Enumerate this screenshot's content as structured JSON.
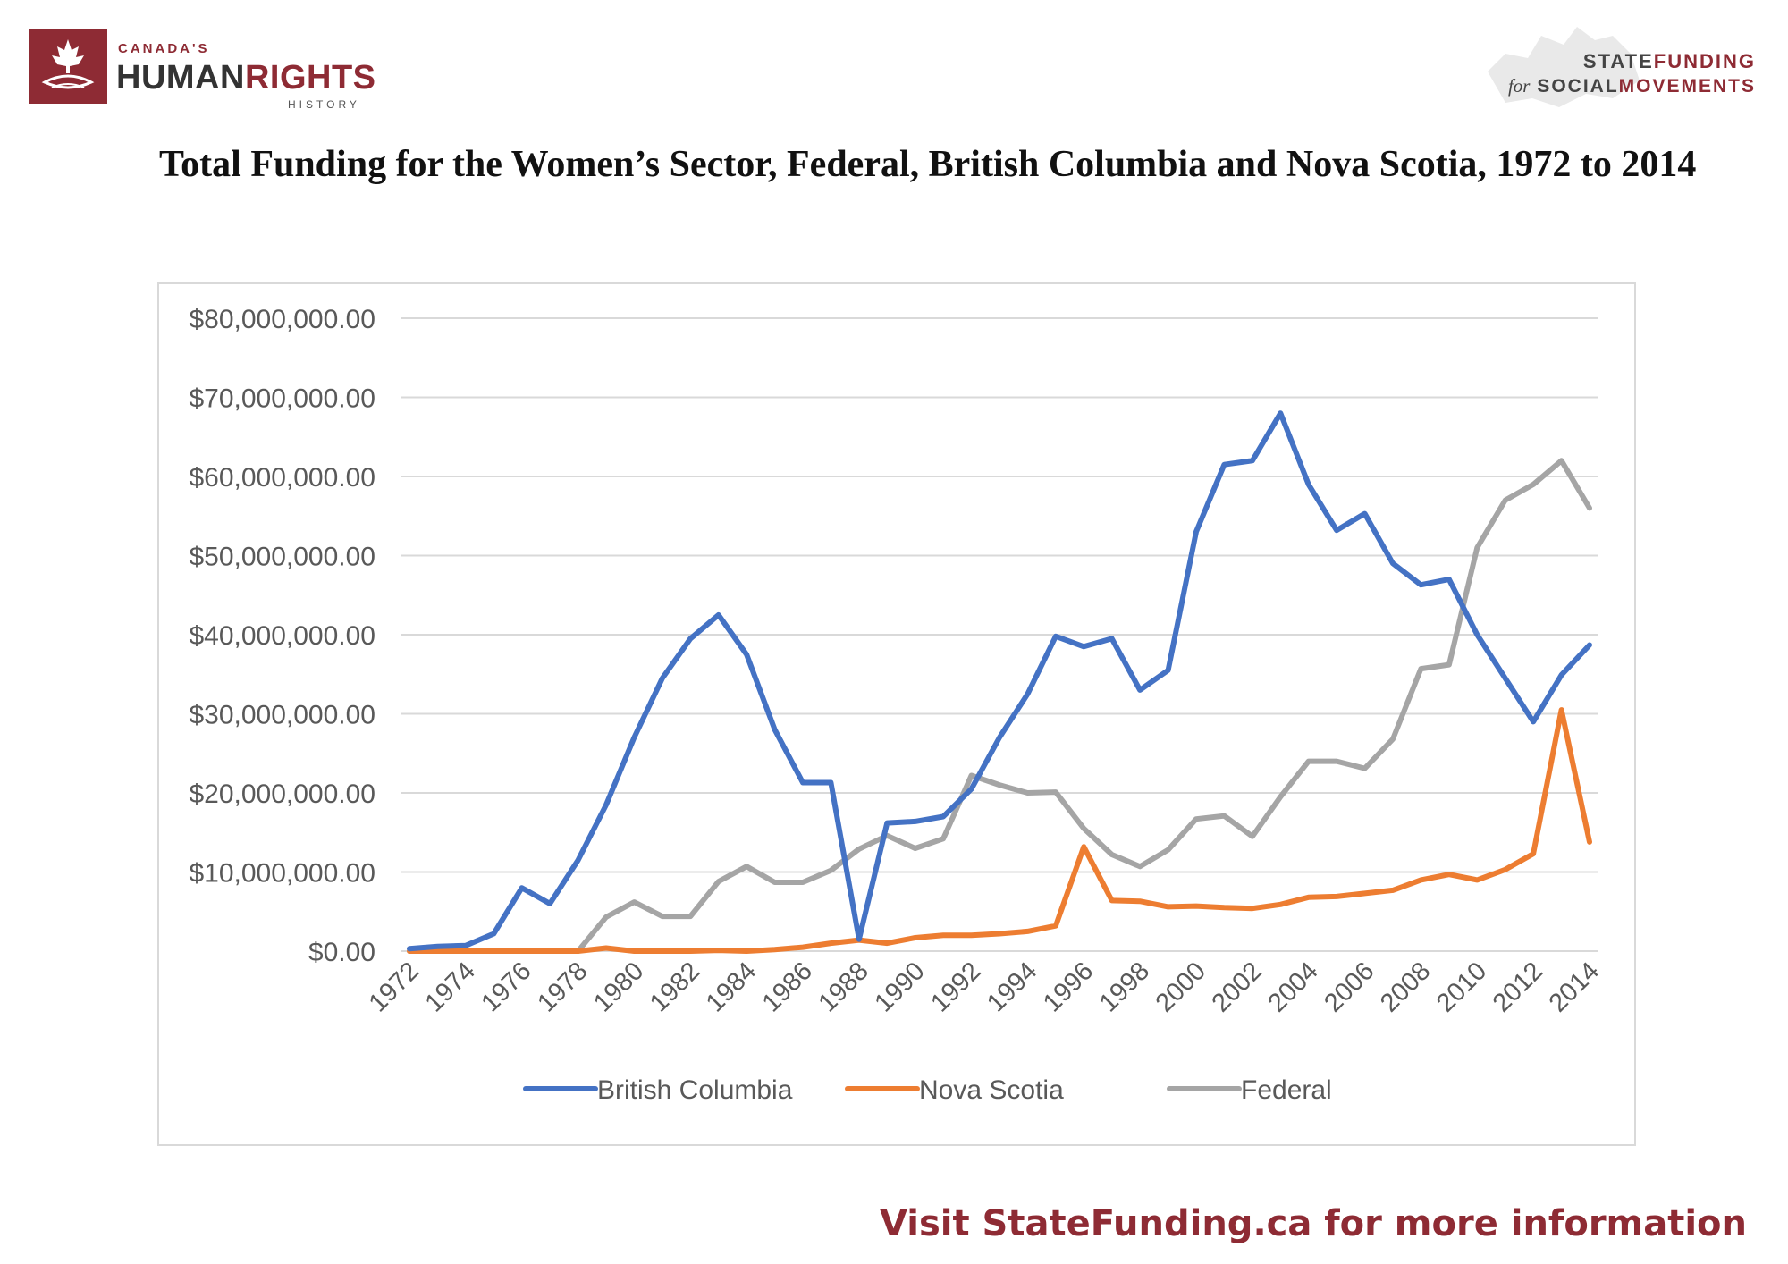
{
  "header": {
    "left_logo": {
      "line1": "CANADA'S",
      "line2a": "HUMAN",
      "line2b": "RIGHTS",
      "line3": "HISTORY",
      "icon": "maple-leaf-icon",
      "color": "#8e2b34"
    },
    "right_logo": {
      "line1a": "STATE",
      "line1b": "FUNDING",
      "line2a": "for",
      "line2b": "SOCIAL",
      "line2c": "MOVEMENTS",
      "icon": "canada-map-icon"
    }
  },
  "title": "Total Funding for the Women’s Sector, Federal, British Columbia and Nova Scotia, 1972 to 2014",
  "footer": {
    "text": "Visit StateFunding.ca for more information"
  },
  "chart_data": {
    "type": "line",
    "title": "Total Funding for the Women’s Sector, Federal, British Columbia and Nova Scotia, 1972 to 2014",
    "xlabel": "",
    "ylabel": "",
    "ylim": [
      0,
      80000000
    ],
    "y_ticks": [
      0,
      10000000,
      20000000,
      30000000,
      40000000,
      50000000,
      60000000,
      70000000,
      80000000
    ],
    "y_tick_labels": [
      "$0.00",
      "$10,000,000.00",
      "$20,000,000.00",
      "$30,000,000.00",
      "$40,000,000.00",
      "$50,000,000.00",
      "$60,000,000.00",
      "$70,000,000.00",
      "$80,000,000.00"
    ],
    "x": [
      1972,
      1973,
      1974,
      1975,
      1976,
      1977,
      1978,
      1979,
      1980,
      1981,
      1982,
      1983,
      1984,
      1985,
      1986,
      1987,
      1988,
      1989,
      1990,
      1991,
      1992,
      1993,
      1994,
      1995,
      1996,
      1997,
      1998,
      1999,
      2000,
      2001,
      2002,
      2003,
      2004,
      2005,
      2006,
      2007,
      2008,
      2009,
      2010,
      2011,
      2012,
      2013,
      2014
    ],
    "x_tick_labels": [
      "1972",
      "1974",
      "1976",
      "1978",
      "1980",
      "1982",
      "1984",
      "1986",
      "1988",
      "1990",
      "1992",
      "1994",
      "1996",
      "1998",
      "2000",
      "2002",
      "2004",
      "2006",
      "2008",
      "2010",
      "2012",
      "2014"
    ],
    "grid": true,
    "legend_position": "bottom",
    "series": [
      {
        "name": "British Columbia",
        "color": "#4472c4",
        "values": [
          300000,
          600000,
          700000,
          2200000,
          8000000,
          6000000,
          11500000,
          18500000,
          27000000,
          34500000,
          39500000,
          42500000,
          37500000,
          28000000,
          21300000,
          21300000,
          1500000,
          16200000,
          16400000,
          17000000,
          20500000,
          27000000,
          32500000,
          39800000,
          38500000,
          39500000,
          33000000,
          35500000,
          53000000,
          61500000,
          62000000,
          68000000,
          59000000,
          53200000,
          55300000,
          49000000,
          46300000,
          47000000,
          40000000,
          34500000,
          29000000,
          34900000,
          38700000
        ]
      },
      {
        "name": "Nova Scotia",
        "color": "#ed7d31",
        "values": [
          0,
          0,
          0,
          0,
          0,
          0,
          0,
          400000,
          0,
          0,
          0,
          100000,
          0,
          200000,
          500000,
          1000000,
          1400000,
          1000000,
          1700000,
          2000000,
          2000000,
          2200000,
          2500000,
          3200000,
          13200000,
          6400000,
          6300000,
          5600000,
          5700000,
          5500000,
          5400000,
          5900000,
          6800000,
          6900000,
          7300000,
          7700000,
          9000000,
          9700000,
          9000000,
          10300000,
          12300000,
          30500000,
          13800000
        ]
      },
      {
        "name": "Federal",
        "color": "#a5a5a5",
        "values": [
          0,
          0,
          0,
          0,
          0,
          0,
          0,
          4300000,
          6200000,
          4400000,
          4400000,
          8800000,
          10700000,
          8700000,
          8700000,
          10200000,
          12900000,
          14600000,
          13000000,
          14200000,
          22200000,
          21000000,
          20000000,
          20100000,
          15500000,
          12200000,
          10700000,
          12800000,
          16700000,
          17100000,
          14500000,
          19500000,
          24000000,
          24000000,
          23100000,
          26800000,
          35700000,
          36200000,
          51000000,
          57000000,
          59000000,
          62000000,
          56000000
        ]
      }
    ]
  }
}
